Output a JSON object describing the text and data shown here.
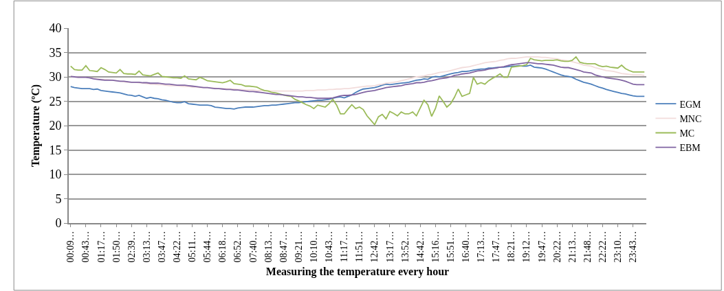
{
  "chart_data": {
    "type": "line",
    "xlabel": "Measuring the temperature every hour",
    "ylabel": "Temperature (ºC)",
    "categories": [
      "00:09…",
      null,
      null,
      null,
      "00:43…",
      null,
      null,
      null,
      "01:17…",
      null,
      null,
      null,
      "01:50…",
      null,
      null,
      null,
      "02:39…",
      null,
      null,
      null,
      "03:13…",
      null,
      null,
      null,
      "03:47…",
      null,
      null,
      null,
      "04:22…",
      null,
      null,
      null,
      "05:11…",
      null,
      null,
      null,
      "05:44…",
      null,
      null,
      null,
      "06:18…",
      null,
      null,
      null,
      "06:52…",
      null,
      null,
      null,
      "07:40…",
      null,
      null,
      null,
      "08:13…",
      null,
      null,
      null,
      "08:47…",
      null,
      null,
      null,
      "09:21…",
      null,
      null,
      null,
      "10:10…",
      null,
      null,
      null,
      "10:43…",
      null,
      null,
      null,
      "11:17…",
      null,
      null,
      null,
      "11:51…",
      null,
      null,
      null,
      "12:42…",
      null,
      null,
      null,
      "13:17…",
      null,
      null,
      null,
      "13:52…",
      null,
      null,
      null,
      "14:42…",
      null,
      null,
      null,
      "15:16…",
      null,
      null,
      null,
      "15:51…",
      null,
      null,
      null,
      "16:40…",
      null,
      null,
      null,
      "17:13…",
      null,
      null,
      null,
      "17:47…",
      null,
      null,
      null,
      "18:21…",
      null,
      null,
      null,
      "19:12…",
      null,
      null,
      null,
      "19:47…",
      null,
      null,
      null,
      "20:22…",
      null,
      null,
      null,
      "21:13…",
      null,
      null,
      null,
      "21:48…",
      null,
      null,
      null,
      "22:22…",
      null,
      null,
      null,
      "23:10…",
      null,
      null,
      null,
      "23:43…",
      null,
      null,
      null
    ],
    "series": [
      {
        "name": "EGM",
        "color": "#4a7ebb",
        "values": [
          28.0,
          27.8,
          27.7,
          27.6,
          27.6,
          27.6,
          27.4,
          27.5,
          27.2,
          27.1,
          27.0,
          26.9,
          26.8,
          26.7,
          26.5,
          26.3,
          26.2,
          26.0,
          26.2,
          25.9,
          25.6,
          25.8,
          25.6,
          25.5,
          25.3,
          25.2,
          25.0,
          24.8,
          24.7,
          24.7,
          24.9,
          24.5,
          24.4,
          24.3,
          24.2,
          24.2,
          24.2,
          24.1,
          23.8,
          23.7,
          23.6,
          23.5,
          23.5,
          23.4,
          23.6,
          23.7,
          23.8,
          23.8,
          23.8,
          23.9,
          24.0,
          24.1,
          24.1,
          24.2,
          24.2,
          24.3,
          24.4,
          24.5,
          24.6,
          24.7,
          24.7,
          24.8,
          24.9,
          25.0,
          25.1,
          25.2,
          25.2,
          25.3,
          25.4,
          25.6,
          25.8,
          25.9,
          25.7,
          26.0,
          26.3,
          26.8,
          27.2,
          27.5,
          27.6,
          27.7,
          27.8,
          28.0,
          28.3,
          28.5,
          28.4,
          28.5,
          28.6,
          28.7,
          28.8,
          28.9,
          29.1,
          29.3,
          29.4,
          29.6,
          29.5,
          29.9,
          30.1,
          30.0,
          30.2,
          30.4,
          30.6,
          30.8,
          30.9,
          31.1,
          31.1,
          31.2,
          31.4,
          31.5,
          31.6,
          31.6,
          31.8,
          31.8,
          31.9,
          32.0,
          32.0,
          32.1,
          32.2,
          32.2,
          32.3,
          32.2,
          32.2,
          32.4,
          32.0,
          31.9,
          31.8,
          31.6,
          31.3,
          31.0,
          30.7,
          30.4,
          30.2,
          30.1,
          29.9,
          29.5,
          29.2,
          28.9,
          28.7,
          28.5,
          28.2,
          27.9,
          27.7,
          27.4,
          27.2,
          27.0,
          26.8,
          26.6,
          26.5,
          26.3,
          26.1,
          26.0,
          26.0,
          26.0
        ]
      },
      {
        "name": "MNC",
        "color": "#f2dcdb",
        "values": [
          30.1,
          30.0,
          29.9,
          29.9,
          29.9,
          29.8,
          29.7,
          29.6,
          29.5,
          29.5,
          29.4,
          29.3,
          29.2,
          29.1,
          29.0,
          28.9,
          28.9,
          28.9,
          28.8,
          28.7,
          28.6,
          28.5,
          28.5,
          28.4,
          28.4,
          28.3,
          28.2,
          28.2,
          28.2,
          28.1,
          28.0,
          28.0,
          27.9,
          27.9,
          27.8,
          27.8,
          27.8,
          27.7,
          27.7,
          27.6,
          27.6,
          27.6,
          27.5,
          27.5,
          27.4,
          27.4,
          27.3,
          27.3,
          27.3,
          27.2,
          27.2,
          27.2,
          27.1,
          27.1,
          27.1,
          27.1,
          27.1,
          27.1,
          27.1,
          27.1,
          27.1,
          27.1,
          27.2,
          27.2,
          27.2,
          27.3,
          27.3,
          27.3,
          27.4,
          27.4,
          27.5,
          27.5,
          27.6,
          27.6,
          27.7,
          27.8,
          27.9,
          28.0,
          28.1,
          28.1,
          28.2,
          28.4,
          28.5,
          28.7,
          28.8,
          28.9,
          29.0,
          29.2,
          29.4,
          29.6,
          29.8,
          30.0,
          30.1,
          30.2,
          30.4,
          30.5,
          30.7,
          30.9,
          31.0,
          31.1,
          31.3,
          31.5,
          31.7,
          31.9,
          32.0,
          32.1,
          32.3,
          32.5,
          32.7,
          32.9,
          33.0,
          33.1,
          33.2,
          33.4,
          33.5,
          33.7,
          33.8,
          33.8,
          33.9,
          34.0,
          34.1,
          34.1,
          34.1,
          34.1,
          34.0,
          34.0,
          33.9,
          33.8,
          33.7,
          33.5,
          33.4,
          33.3,
          33.1,
          32.9,
          32.7,
          32.4,
          32.3,
          32.2,
          31.9,
          31.7,
          31.5,
          31.3,
          31.2,
          31.1,
          30.9,
          30.7,
          30.6,
          30.5,
          30.4,
          30.4,
          30.4,
          30.3
        ]
      },
      {
        "name": "MC",
        "color": "#9bbb59",
        "values": [
          32.2,
          31.5,
          31.4,
          31.4,
          32.3,
          31.3,
          31.2,
          31.1,
          31.9,
          31.5,
          31.0,
          30.9,
          30.8,
          31.5,
          30.7,
          30.6,
          30.6,
          30.5,
          31.2,
          30.4,
          30.3,
          30.2,
          30.5,
          30.8,
          30.1,
          30.0,
          29.9,
          29.8,
          29.8,
          29.7,
          30.2,
          29.6,
          29.5,
          29.4,
          29.9,
          29.6,
          29.2,
          29.1,
          29.0,
          28.9,
          28.8,
          29.0,
          29.3,
          28.6,
          28.5,
          28.4,
          28.1,
          28.1,
          28.0,
          27.9,
          27.5,
          27.2,
          27.1,
          26.8,
          26.7,
          26.5,
          26.3,
          26.1,
          26.0,
          25.4,
          25.1,
          24.7,
          24.3,
          24.0,
          23.5,
          24.2,
          24.0,
          23.8,
          24.5,
          25.4,
          24.2,
          22.4,
          22.4,
          23.4,
          24.3,
          23.5,
          23.8,
          23.3,
          22.0,
          21.1,
          20.2,
          21.8,
          22.3,
          21.4,
          22.9,
          22.5,
          22.0,
          22.8,
          22.4,
          22.4,
          22.8,
          22.0,
          23.6,
          25.2,
          24.3,
          21.9,
          23.5,
          26.1,
          25.0,
          23.8,
          24.5,
          25.8,
          27.5,
          26.0,
          26.3,
          26.6,
          29.9,
          28.5,
          28.8,
          28.5,
          29.2,
          29.7,
          30.1,
          30.6,
          29.9,
          29.9,
          32.0,
          32.1,
          32.2,
          32.3,
          32.5,
          33.8,
          33.5,
          33.4,
          33.3,
          33.4,
          33.4,
          33.4,
          33.5,
          33.3,
          33.2,
          33.2,
          33.4,
          34.1,
          33.0,
          32.8,
          32.7,
          32.7,
          32.7,
          32.3,
          32.1,
          32.2,
          32.0,
          31.9,
          31.8,
          32.4,
          31.7,
          31.3,
          31.0,
          31.0,
          31.0,
          31.0
        ]
      },
      {
        "name": "EBM",
        "color": "#8064a2",
        "values": [
          30.1,
          30.0,
          29.9,
          29.9,
          29.9,
          29.8,
          29.6,
          29.5,
          29.4,
          29.3,
          29.3,
          29.3,
          29.2,
          29.1,
          29.1,
          29.0,
          28.9,
          28.9,
          28.9,
          28.8,
          28.8,
          28.7,
          28.7,
          28.7,
          28.6,
          28.5,
          28.5,
          28.4,
          28.3,
          28.3,
          28.3,
          28.2,
          28.1,
          28.0,
          27.9,
          27.8,
          27.8,
          27.7,
          27.6,
          27.6,
          27.5,
          27.4,
          27.4,
          27.3,
          27.3,
          27.2,
          27.1,
          27.0,
          27.0,
          26.9,
          26.8,
          26.7,
          26.6,
          26.5,
          26.4,
          26.4,
          26.3,
          26.2,
          26.1,
          26.0,
          25.9,
          25.9,
          25.8,
          25.8,
          25.7,
          25.6,
          25.6,
          25.6,
          25.6,
          25.7,
          25.9,
          26.1,
          26.2,
          26.2,
          26.3,
          26.4,
          26.6,
          26.8,
          27.0,
          27.1,
          27.2,
          27.4,
          27.6,
          27.8,
          27.9,
          28.0,
          28.1,
          28.2,
          28.4,
          28.5,
          28.6,
          28.8,
          28.8,
          28.9,
          29.1,
          29.2,
          29.4,
          29.6,
          29.7,
          29.8,
          30.0,
          30.3,
          30.4,
          30.6,
          30.7,
          30.8,
          31.0,
          31.2,
          31.3,
          31.4,
          31.6,
          31.7,
          31.8,
          32.0,
          32.1,
          32.3,
          32.5,
          32.6,
          32.7,
          32.8,
          32.9,
          32.9,
          32.8,
          32.7,
          32.7,
          32.6,
          32.5,
          32.4,
          32.2,
          32.0,
          31.9,
          31.9,
          31.7,
          31.5,
          31.3,
          31.0,
          30.9,
          30.8,
          30.4,
          30.2,
          30.0,
          29.8,
          29.7,
          29.6,
          29.5,
          29.3,
          29.1,
          28.8,
          28.5,
          28.4,
          28.4,
          28.4
        ]
      }
    ],
    "ylim": [
      0,
      40
    ],
    "yticks": [
      0,
      5,
      10,
      15,
      20,
      25,
      30,
      35,
      40
    ],
    "grid": "y",
    "legend": "right",
    "marker": "none",
    "line_style": "solid"
  }
}
